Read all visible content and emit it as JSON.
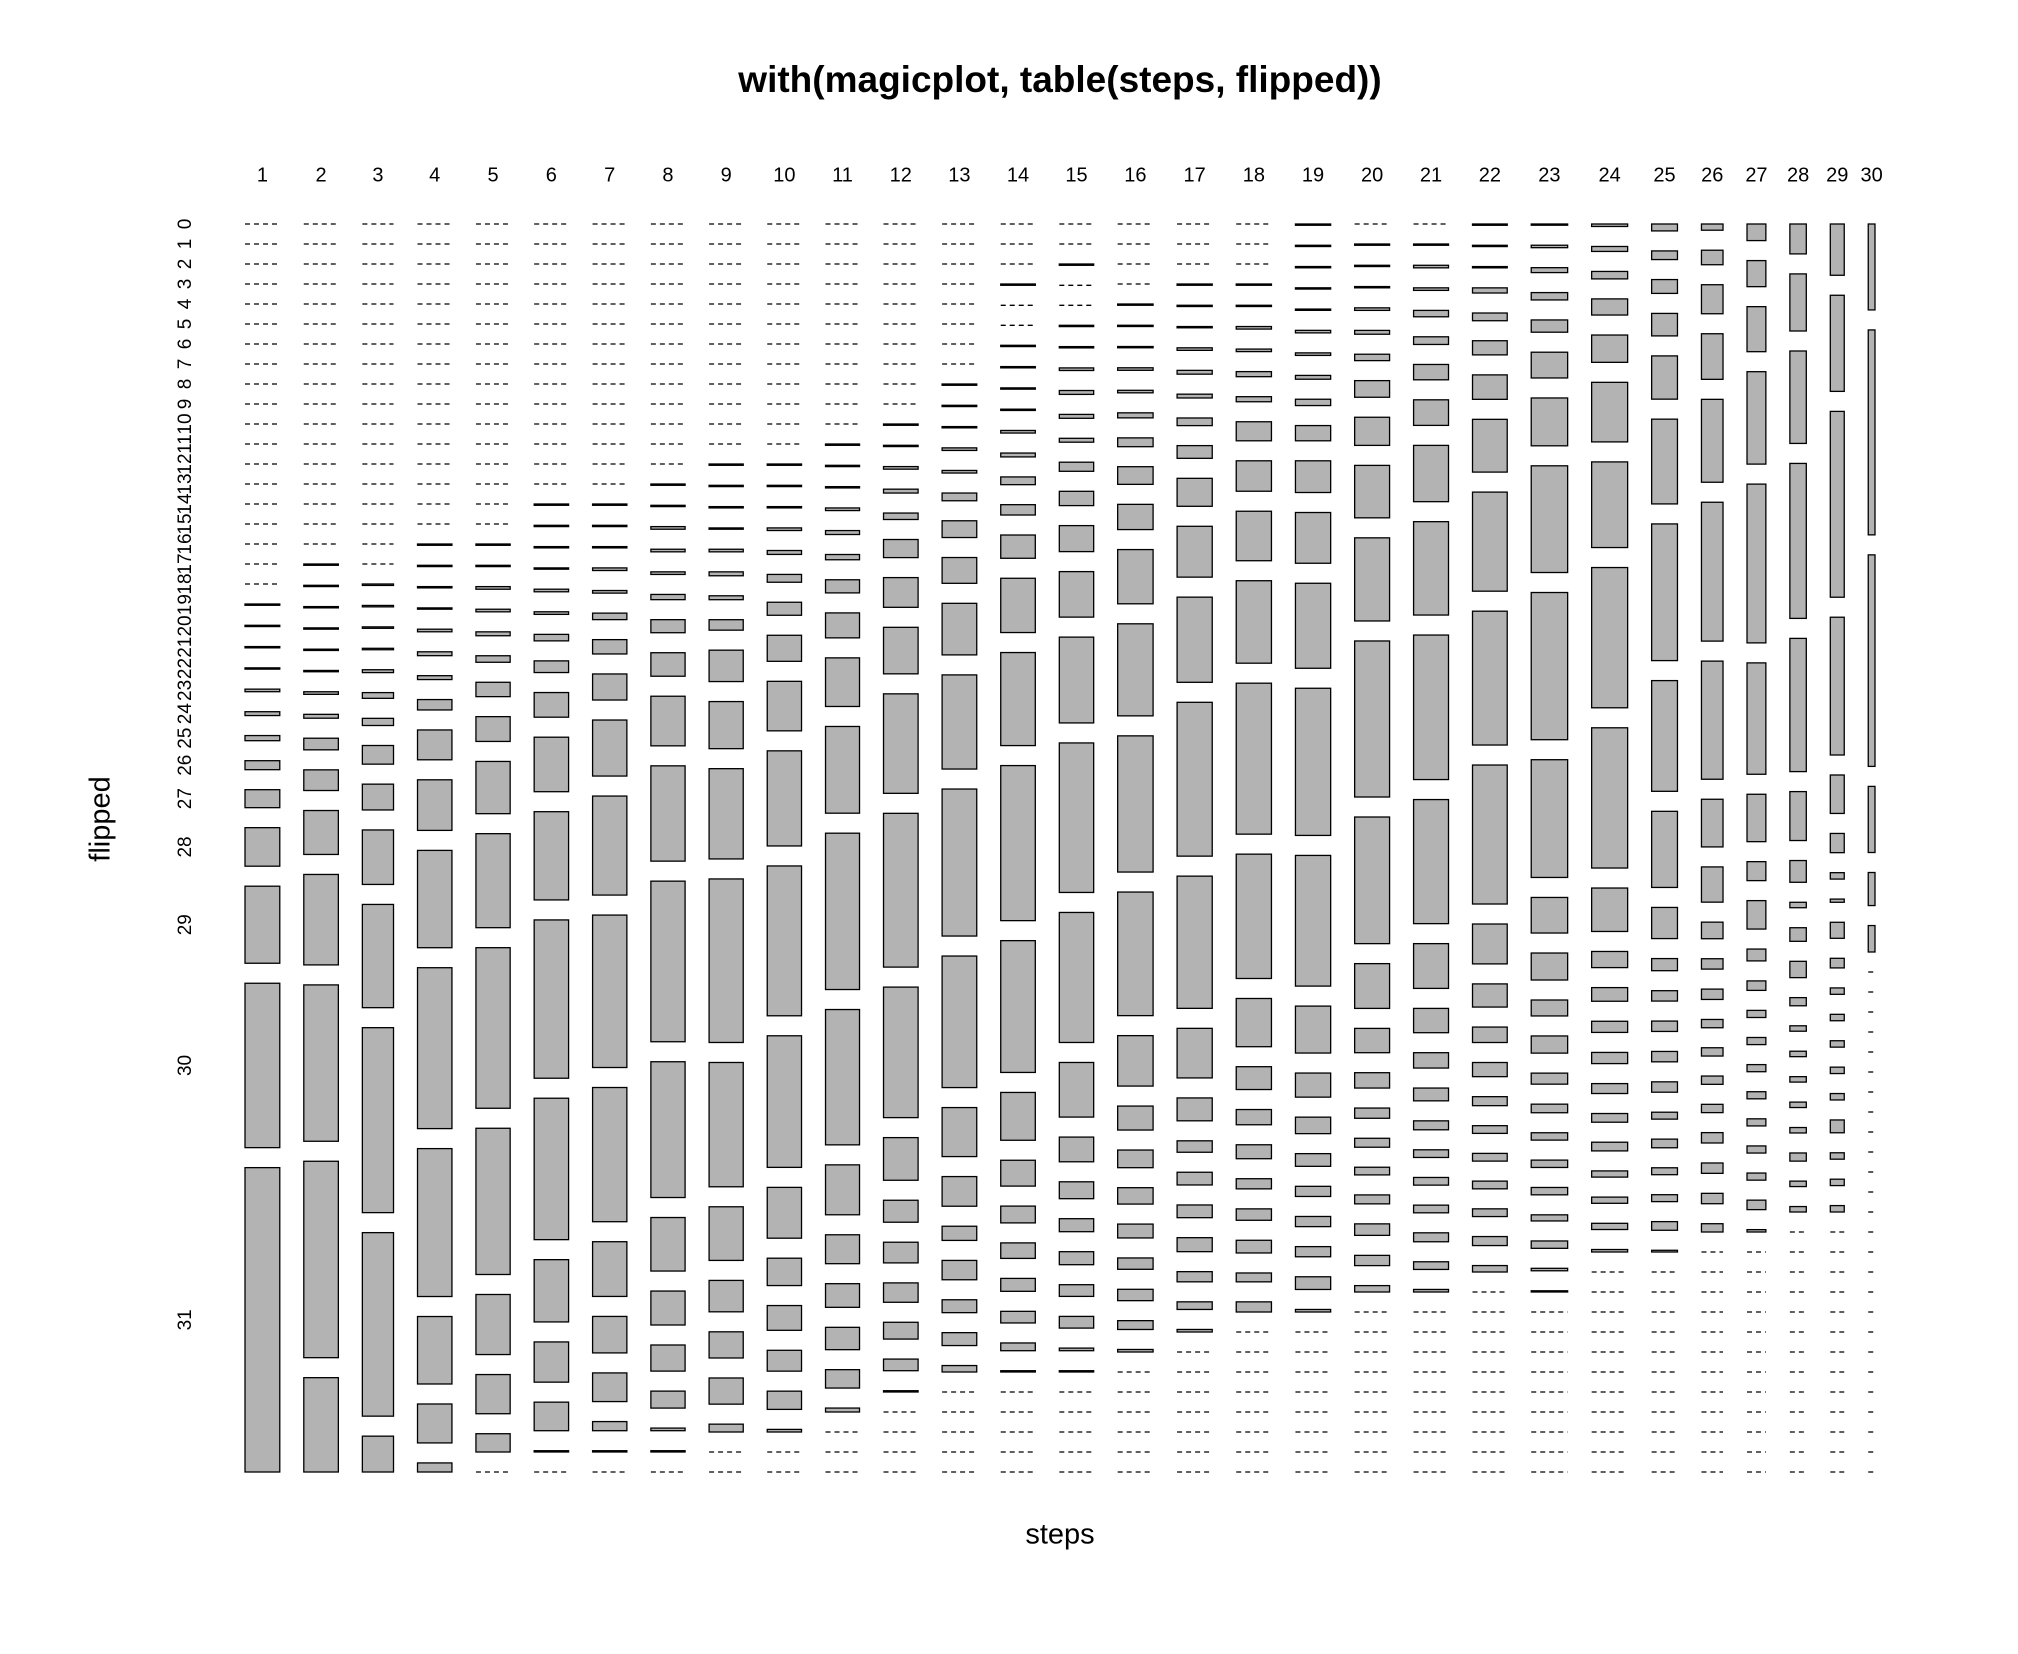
{
  "chart_data": {
    "type": "mosaic",
    "title": "with(magicplot, table(steps, flipped))",
    "x_label": "steps",
    "y_label": "flipped",
    "color": "#b3b3b3",
    "categories": [
      1,
      2,
      3,
      4,
      5,
      6,
      7,
      8,
      9,
      10,
      11,
      12,
      13,
      14,
      15,
      16,
      17,
      18,
      19,
      20,
      21,
      22,
      23,
      24,
      25,
      26,
      27,
      28,
      29,
      30
    ],
    "rows": [
      0,
      1,
      2,
      3,
      4,
      5,
      6,
      7,
      8,
      9,
      10,
      11,
      12,
      13,
      14,
      15,
      16,
      17,
      18,
      19,
      20,
      21,
      22,
      23,
      24,
      25,
      26,
      27,
      28,
      29,
      30,
      31
    ],
    "values": [
      [
        0,
        0,
        0,
        0,
        0,
        0,
        0,
        0,
        0,
        0,
        0,
        0,
        0,
        0,
        0,
        0,
        0,
        0,
        0,
        1,
        1,
        1,
        1,
        2,
        3,
        4,
        7,
        14,
        30,
        60,
        128,
        237
      ],
      [
        0,
        0,
        0,
        0,
        0,
        0,
        0,
        0,
        0,
        0,
        0,
        0,
        0,
        0,
        0,
        0,
        0,
        1,
        1,
        1,
        1,
        1,
        1,
        2,
        3,
        9,
        16,
        34,
        70,
        121,
        152,
        73
      ],
      [
        0,
        0,
        0,
        0,
        0,
        0,
        0,
        0,
        0,
        0,
        0,
        0,
        0,
        0,
        0,
        0,
        0,
        0,
        1,
        1,
        1,
        1,
        2,
        4,
        5,
        13,
        18,
        38,
        72,
        129,
        128,
        25
      ],
      [
        0,
        0,
        0,
        0,
        0,
        0,
        0,
        0,
        0,
        0,
        0,
        0,
        0,
        0,
        0,
        0,
        1,
        1,
        1,
        1,
        2,
        3,
        3,
        8,
        23,
        39,
        75,
        124,
        114,
        52,
        30,
        7
      ],
      [
        0,
        0,
        0,
        0,
        0,
        0,
        0,
        0,
        0,
        0,
        0,
        0,
        0,
        0,
        0,
        0,
        1,
        1,
        2,
        2,
        3,
        5,
        11,
        19,
        40,
        72,
        123,
        112,
        46,
        30,
        14,
        0
      ],
      [
        0,
        0,
        0,
        0,
        0,
        0,
        0,
        0,
        0,
        0,
        0,
        0,
        0,
        0,
        1,
        1,
        1,
        1,
        2,
        2,
        5,
        9,
        19,
        42,
        68,
        122,
        109,
        48,
        31,
        22,
        1,
        0
      ],
      [
        0,
        0,
        0,
        0,
        0,
        0,
        0,
        0,
        0,
        0,
        0,
        0,
        0,
        0,
        1,
        1,
        1,
        2,
        2,
        5,
        11,
        20,
        43,
        76,
        117,
        103,
        42,
        28,
        22,
        7,
        1,
        0
      ],
      [
        0,
        0,
        0,
        0,
        0,
        0,
        0,
        0,
        0,
        0,
        0,
        0,
        0,
        1,
        1,
        2,
        2,
        2,
        4,
        10,
        18,
        38,
        73,
        123,
        104,
        41,
        26,
        20,
        13,
        2,
        1,
        0
      ],
      [
        0,
        0,
        0,
        0,
        0,
        0,
        0,
        0,
        0,
        0,
        0,
        0,
        1,
        1,
        1,
        1,
        2,
        3,
        3,
        8,
        24,
        36,
        69,
        125,
        95,
        41,
        24,
        20,
        20,
        6,
        0,
        0
      ],
      [
        0,
        0,
        0,
        0,
        0,
        0,
        0,
        0,
        0,
        0,
        0,
        0,
        1,
        1,
        1,
        2,
        3,
        6,
        10,
        20,
        38,
        73,
        115,
        101,
        39,
        21,
        19,
        16,
        14,
        2,
        0,
        0
      ],
      [
        0,
        0,
        0,
        0,
        0,
        0,
        0,
        0,
        0,
        0,
        0,
        1,
        1,
        1,
        2,
        3,
        4,
        10,
        19,
        37,
        66,
        119,
        103,
        38,
        22,
        18,
        17,
        14,
        3,
        0,
        0,
        0
      ],
      [
        0,
        0,
        0,
        0,
        0,
        0,
        0,
        0,
        0,
        0,
        1,
        1,
        2,
        3,
        5,
        14,
        23,
        36,
        77,
        119,
        101,
        33,
        17,
        16,
        15,
        13,
        9,
        1,
        0,
        0,
        0,
        0
      ],
      [
        0,
        0,
        0,
        0,
        0,
        0,
        0,
        0,
        1,
        1,
        1,
        2,
        2,
        6,
        13,
        20,
        40,
        73,
        114,
        102,
        38,
        23,
        11,
        15,
        10,
        10,
        5,
        0,
        0,
        0,
        0,
        0
      ],
      [
        0,
        0,
        0,
        1,
        0,
        0,
        1,
        1,
        1,
        1,
        2,
        3,
        6,
        8,
        18,
        42,
        72,
        120,
        102,
        37,
        20,
        13,
        12,
        10,
        9,
        6,
        1,
        0,
        0,
        0,
        0,
        0
      ],
      [
        0,
        0,
        1,
        0,
        0,
        1,
        1,
        2,
        3,
        3,
        3,
        7,
        11,
        20,
        35,
        66,
        115,
        100,
        42,
        19,
        13,
        10,
        10,
        9,
        9,
        2,
        1,
        0,
        0,
        0,
        0,
        0
      ],
      [
        0,
        0,
        0,
        0,
        1,
        1,
        1,
        2,
        2,
        4,
        7,
        14,
        20,
        43,
        73,
        108,
        98,
        40,
        19,
        14,
        13,
        11,
        9,
        9,
        7,
        2,
        0,
        0,
        0,
        0,
        0,
        0
      ],
      [
        0,
        0,
        0,
        1,
        1,
        1,
        2,
        3,
        3,
        6,
        10,
        22,
        40,
        67,
        121,
        104,
        39,
        18,
        9,
        10,
        10,
        11,
        8,
        6,
        2,
        0,
        0,
        0,
        0,
        0,
        0,
        0
      ],
      [
        0,
        0,
        0,
        1,
        1,
        2,
        2,
        4,
        4,
        15,
        24,
        39,
        65,
        119,
        98,
        38,
        18,
        12,
        11,
        8,
        9,
        10,
        7,
        8,
        0,
        0,
        0,
        0,
        0,
        0,
        0,
        0
      ],
      [
        1,
        1,
        1,
        1,
        1,
        2,
        2,
        3,
        5,
        12,
        25,
        40,
        67,
        116,
        103,
        37,
        19,
        13,
        10,
        8,
        8,
        8,
        10,
        2,
        0,
        0,
        0,
        0,
        0,
        0,
        0,
        0
      ],
      [
        0,
        1,
        1,
        1,
        2,
        3,
        5,
        13,
        22,
        41,
        65,
        122,
        99,
        35,
        19,
        12,
        8,
        7,
        6,
        7,
        9,
        8,
        5,
        0,
        0,
        0,
        0,
        0,
        0,
        0,
        0,
        0
      ],
      [
        0,
        1,
        2,
        2,
        5,
        6,
        12,
        20,
        44,
        73,
        113,
        97,
        35,
        19,
        12,
        10,
        7,
        6,
        6,
        6,
        7,
        6,
        2,
        0,
        0,
        0,
        0,
        0,
        0,
        0,
        0,
        0
      ],
      [
        1,
        1,
        1,
        4,
        6,
        11,
        19,
        41,
        77,
        104,
        108,
        31,
        18,
        12,
        11,
        7,
        6,
        6,
        6,
        6,
        7,
        5,
        0,
        0,
        0,
        0,
        0,
        0,
        0,
        0,
        0,
        0
      ],
      [
        1,
        2,
        4,
        6,
        10,
        21,
        39,
        87,
        120,
        96,
        29,
        22,
        13,
        14,
        9,
        7,
        6,
        6,
        6,
        5,
        6,
        2,
        1,
        0,
        0,
        0,
        0,
        0,
        0,
        0,
        0,
        0
      ],
      [
        2,
        4,
        6,
        13,
        22,
        48,
        69,
        113,
        113,
        35,
        13,
        11,
        9,
        9,
        8,
        7,
        7,
        5,
        5,
        5,
        2,
        0,
        0,
        0,
        0,
        0,
        0,
        0,
        0,
        0,
        0,
        0
      ],
      [
        4,
        5,
        8,
        13,
        25,
        49,
        79,
        64,
        44,
        18,
        7,
        6,
        6,
        6,
        6,
        4,
        5,
        4,
        4,
        5,
        1,
        0,
        0,
        0,
        0,
        0,
        0,
        0,
        0,
        0,
        0,
        0
      ],
      [
        3,
        7,
        14,
        22,
        40,
        67,
        57,
        23,
        17,
        8,
        5,
        5,
        4,
        4,
        4,
        4,
        5,
        5,
        5,
        4,
        0,
        0,
        0,
        0,
        0,
        0,
        0,
        0,
        0,
        0,
        0,
        0
      ],
      [
        7,
        11,
        19,
        39,
        67,
        47,
        20,
        8,
        12,
        5,
        4,
        3,
        3,
        3,
        3,
        3,
        3,
        3,
        4,
        1,
        0,
        0,
        0,
        0,
        0,
        0,
        0,
        0,
        0,
        0,
        0,
        0
      ],
      [
        11,
        21,
        34,
        57,
        49,
        18,
        8,
        2,
        5,
        6,
        3,
        2,
        2,
        2,
        2,
        2,
        3,
        2,
        2,
        0,
        0,
        0,
        0,
        0,
        0,
        0,
        0,
        0,
        0,
        0,
        0,
        0
      ],
      [
        16,
        30,
        58,
        43,
        12,
        6,
        2,
        1,
        5,
        3,
        2,
        2,
        2,
        2,
        2,
        4,
        2,
        2,
        2,
        0,
        0,
        0,
        0,
        0,
        0,
        0,
        0,
        0,
        0,
        0,
        0,
        0
      ],
      [
        13,
        31,
        32,
        10,
        5,
        4,
        0,
        0,
        0,
        0,
        0,
        0,
        0,
        0,
        0,
        0,
        0,
        0,
        0,
        0,
        0,
        0,
        0,
        0,
        0,
        0,
        0,
        0,
        0,
        0,
        0,
        0
      ]
    ]
  }
}
